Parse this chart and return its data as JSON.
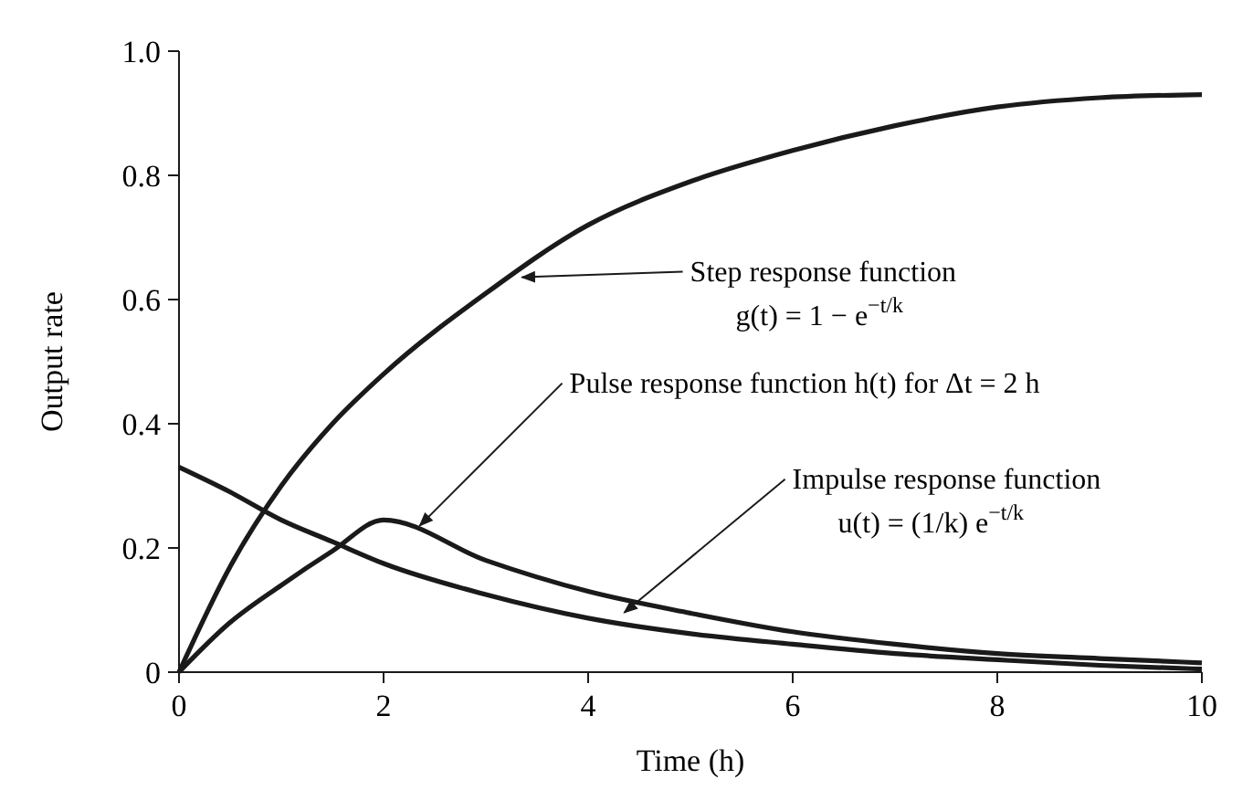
{
  "chart_data": {
    "type": "line",
    "xlabel": "Time (h)",
    "ylabel": "Output rate",
    "x": [
      0,
      0.5,
      1,
      1.5,
      2,
      3,
      4,
      5,
      6,
      7,
      8,
      9,
      10
    ],
    "series": [
      {
        "color": "#1a1a1a",
        "values": [
          0,
          0.17,
          0.3,
          0.4,
          0.48,
          0.61,
          0.72,
          0.79,
          0.84,
          0.88,
          0.91,
          0.925,
          0.93
        ]
      },
      {
        "color": "#1a1a1a",
        "values": [
          0,
          0.08,
          0.14,
          0.195,
          0.245,
          0.18,
          0.13,
          0.095,
          0.065,
          0.045,
          0.03,
          0.022,
          0.015
        ]
      },
      {
        "color": "#1a1a1a",
        "values": [
          0.33,
          0.29,
          0.245,
          0.21,
          0.175,
          0.125,
          0.087,
          0.062,
          0.045,
          0.03,
          0.02,
          0.011,
          0.005
        ]
      }
    ],
    "xlim": [
      0,
      10
    ],
    "ylim": [
      0,
      1
    ],
    "xticks": [
      0,
      2,
      4,
      6,
      8,
      10
    ],
    "yticks": [
      0,
      0.2,
      0.4,
      0.6,
      0.8,
      {
        "value": 1,
        "label": "1.0"
      }
    ],
    "grid": false,
    "marker": "none",
    "line_style": "solid",
    "annotations": [
      {
        "text": "Step response function\ng(t) = 1 − e$^{−t/k}$",
        "x": 3.3,
        "y": 0.63
      },
      {
        "text": "Pulse response function h(t) for Δt = 2 h",
        "x": 2.3,
        "y": 0.23
      },
      {
        "text": "Impulse response function\nu(t) = (1/k) e$^{−t/k}$",
        "x": 4.3,
        "y": 0.09
      }
    ]
  }
}
